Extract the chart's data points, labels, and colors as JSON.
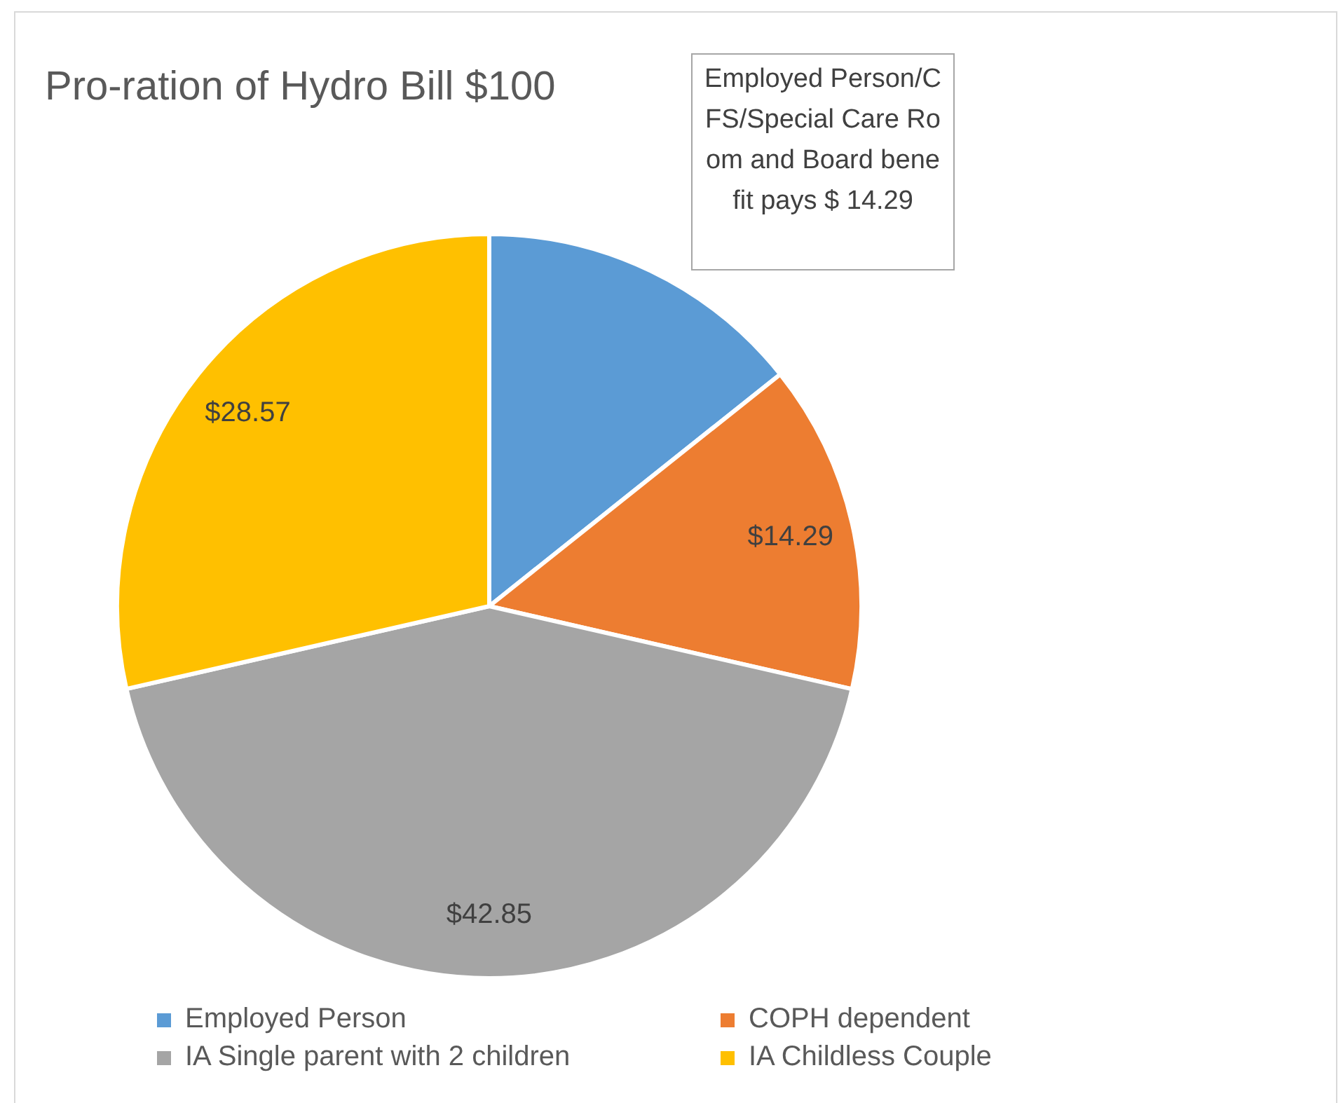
{
  "chart_data": {
    "type": "pie",
    "title": "Pro-ration of Hydro Bill $100",
    "categories": [
      "Employed Person",
      "COPH dependent",
      "IA Single parent with 2 children",
      "IA Childless Couple"
    ],
    "values": [
      14.29,
      14.29,
      42.85,
      28.57
    ],
    "colors": [
      "#5b9bd5",
      "#ed7d31",
      "#a5a5a5",
      "#ffc000"
    ],
    "value_labels": [
      null,
      "$14.29",
      "$42.85",
      "$28.57"
    ],
    "annotations": [
      "Employed Person/CFS/Special Care Room and Board benefit pays $ 14.29"
    ],
    "legend": "bottom"
  }
}
